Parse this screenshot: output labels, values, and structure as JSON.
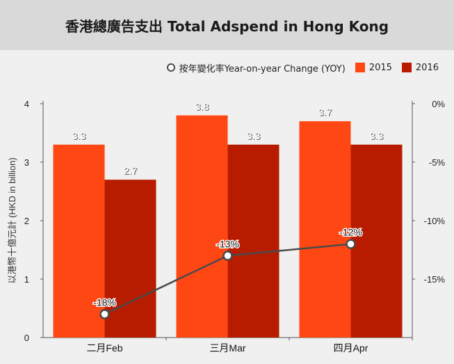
{
  "title": "香港總廣告支出 Total Adspend in Hong Kong",
  "legend": {
    "line_label": "按年變化率Year-on-year Change (YOY)",
    "s2015_label": "2015",
    "s2016_label": "2016"
  },
  "colors": {
    "s2015": "#ff4713",
    "s2016": "#b71c00",
    "line": "#4a4a4a"
  },
  "chart_data": {
    "type": "bar",
    "title": "香港總廣告支出 Total Adspend in Hong Kong",
    "categories": [
      "二月Feb",
      "三月Mar",
      "四月Apr"
    ],
    "series": [
      {
        "name": "2015",
        "values": [
          3.3,
          3.8,
          3.7
        ],
        "labels": [
          "3.3",
          "3.8",
          "3.7"
        ]
      },
      {
        "name": "2016",
        "values": [
          2.7,
          3.3,
          3.3
        ],
        "labels": [
          "2.7",
          "3.3",
          "3.3"
        ]
      }
    ],
    "line_series": {
      "name": "按年變化率Year-on-year Change (YOY)",
      "values": [
        -18,
        -13,
        -12
      ],
      "labels": [
        "-18%",
        "-13%",
        "-12%"
      ],
      "axis": "right"
    },
    "ylabel": "以港幣十億元計 (HKD in billion)",
    "ylim": [
      0,
      4
    ],
    "yticks": [
      0,
      1,
      2,
      3,
      4
    ],
    "ytick_labels": [
      "0",
      "1",
      "2",
      "3",
      "4"
    ],
    "y2lim": [
      -20,
      0
    ],
    "y2ticks": [
      0,
      -5,
      -10,
      -15
    ],
    "y2tick_labels": [
      "0%",
      "-5%",
      "-10%",
      "-15%"
    ],
    "grid": false,
    "legend_position": "top-right"
  }
}
